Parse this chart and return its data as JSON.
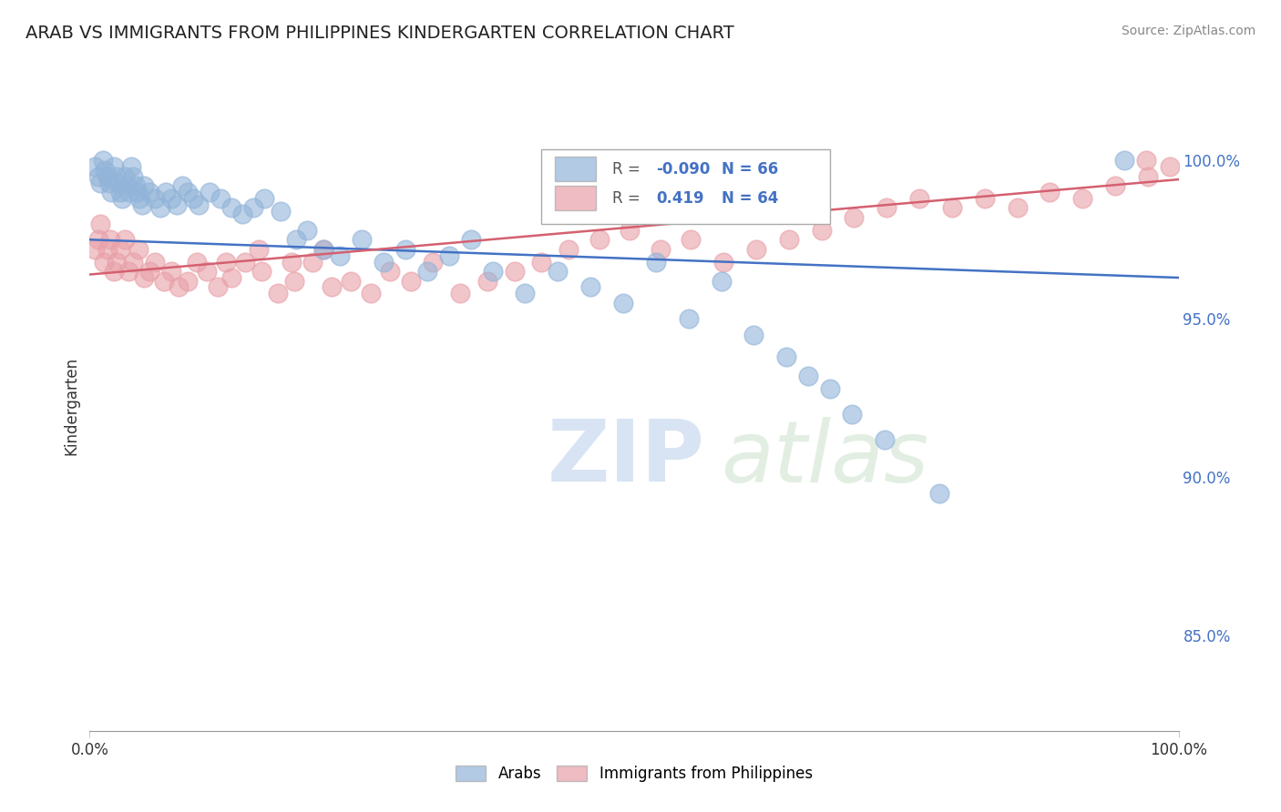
{
  "title": "ARAB VS IMMIGRANTS FROM PHILIPPINES KINDERGARTEN CORRELATION CHART",
  "source": "Source: ZipAtlas.com",
  "ylabel": "Kindergarten",
  "legend_arab_R": "-0.090",
  "legend_arab_N": "66",
  "legend_phil_R": "0.419",
  "legend_phil_N": "64",
  "legend_arab_label": "Arabs",
  "legend_phil_label": "Immigrants from Philippines",
  "arab_color": "#92b4d9",
  "phil_color": "#e8a0a8",
  "arab_line_color": "#4472c4",
  "phil_line_color": "#d46070",
  "right_yticks": [
    1.0,
    0.95,
    0.9,
    0.85
  ],
  "right_ytick_labels": [
    "100.0%",
    "95.0%",
    "90.0%",
    "85.0%"
  ],
  "xmin": 0.0,
  "xmax": 1.0,
  "ymin": 0.82,
  "ymax": 1.025,
  "arab_line_x0": 0.0,
  "arab_line_y0": 0.975,
  "arab_line_x1": 1.0,
  "arab_line_y1": 0.963,
  "phil_line_x0": 0.0,
  "phil_line_y0": 0.964,
  "phil_line_x1": 1.0,
  "phil_line_y1": 0.994,
  "arab_x": [
    0.005,
    0.008,
    0.01,
    0.012,
    0.014,
    0.016,
    0.018,
    0.02,
    0.022,
    0.024,
    0.026,
    0.028,
    0.03,
    0.032,
    0.034,
    0.036,
    0.038,
    0.04,
    0.042,
    0.044,
    0.046,
    0.048,
    0.05,
    0.055,
    0.06,
    0.065,
    0.07,
    0.075,
    0.08,
    0.085,
    0.09,
    0.095,
    0.1,
    0.11,
    0.12,
    0.13,
    0.14,
    0.15,
    0.16,
    0.175,
    0.19,
    0.2,
    0.215,
    0.23,
    0.25,
    0.27,
    0.29,
    0.31,
    0.33,
    0.35,
    0.37,
    0.4,
    0.43,
    0.46,
    0.49,
    0.52,
    0.55,
    0.58,
    0.61,
    0.64,
    0.66,
    0.68,
    0.7,
    0.73,
    0.78,
    0.95
  ],
  "arab_y": [
    0.998,
    0.995,
    0.993,
    1.0,
    0.997,
    0.995,
    0.993,
    0.99,
    0.998,
    0.995,
    0.993,
    0.99,
    0.988,
    0.995,
    0.992,
    0.99,
    0.998,
    0.995,
    0.992,
    0.99,
    0.988,
    0.986,
    0.992,
    0.99,
    0.988,
    0.985,
    0.99,
    0.988,
    0.986,
    0.992,
    0.99,
    0.988,
    0.986,
    0.99,
    0.988,
    0.985,
    0.983,
    0.985,
    0.988,
    0.984,
    0.975,
    0.978,
    0.972,
    0.97,
    0.975,
    0.968,
    0.972,
    0.965,
    0.97,
    0.975,
    0.965,
    0.958,
    0.965,
    0.96,
    0.955,
    0.968,
    0.95,
    0.962,
    0.945,
    0.938,
    0.932,
    0.928,
    0.92,
    0.912,
    0.895,
    1.0
  ],
  "phil_x": [
    0.005,
    0.008,
    0.01,
    0.013,
    0.016,
    0.019,
    0.022,
    0.025,
    0.028,
    0.032,
    0.036,
    0.04,
    0.045,
    0.05,
    0.055,
    0.06,
    0.068,
    0.075,
    0.082,
    0.09,
    0.098,
    0.108,
    0.118,
    0.13,
    0.143,
    0.158,
    0.173,
    0.188,
    0.205,
    0.222,
    0.24,
    0.258,
    0.276,
    0.295,
    0.315,
    0.34,
    0.365,
    0.39,
    0.415,
    0.44,
    0.468,
    0.496,
    0.524,
    0.552,
    0.582,
    0.612,
    0.642,
    0.672,
    0.702,
    0.732,
    0.762,
    0.792,
    0.822,
    0.852,
    0.882,
    0.912,
    0.942,
    0.972,
    0.992,
    0.125,
    0.155,
    0.185,
    0.215,
    0.97
  ],
  "phil_y": [
    0.972,
    0.975,
    0.98,
    0.968,
    0.972,
    0.975,
    0.965,
    0.968,
    0.972,
    0.975,
    0.965,
    0.968,
    0.972,
    0.963,
    0.965,
    0.968,
    0.962,
    0.965,
    0.96,
    0.962,
    0.968,
    0.965,
    0.96,
    0.963,
    0.968,
    0.965,
    0.958,
    0.962,
    0.968,
    0.96,
    0.962,
    0.958,
    0.965,
    0.962,
    0.968,
    0.958,
    0.962,
    0.965,
    0.968,
    0.972,
    0.975,
    0.978,
    0.972,
    0.975,
    0.968,
    0.972,
    0.975,
    0.978,
    0.982,
    0.985,
    0.988,
    0.985,
    0.988,
    0.985,
    0.99,
    0.988,
    0.992,
    0.995,
    0.998,
    0.968,
    0.972,
    0.968,
    0.972,
    1.0
  ]
}
